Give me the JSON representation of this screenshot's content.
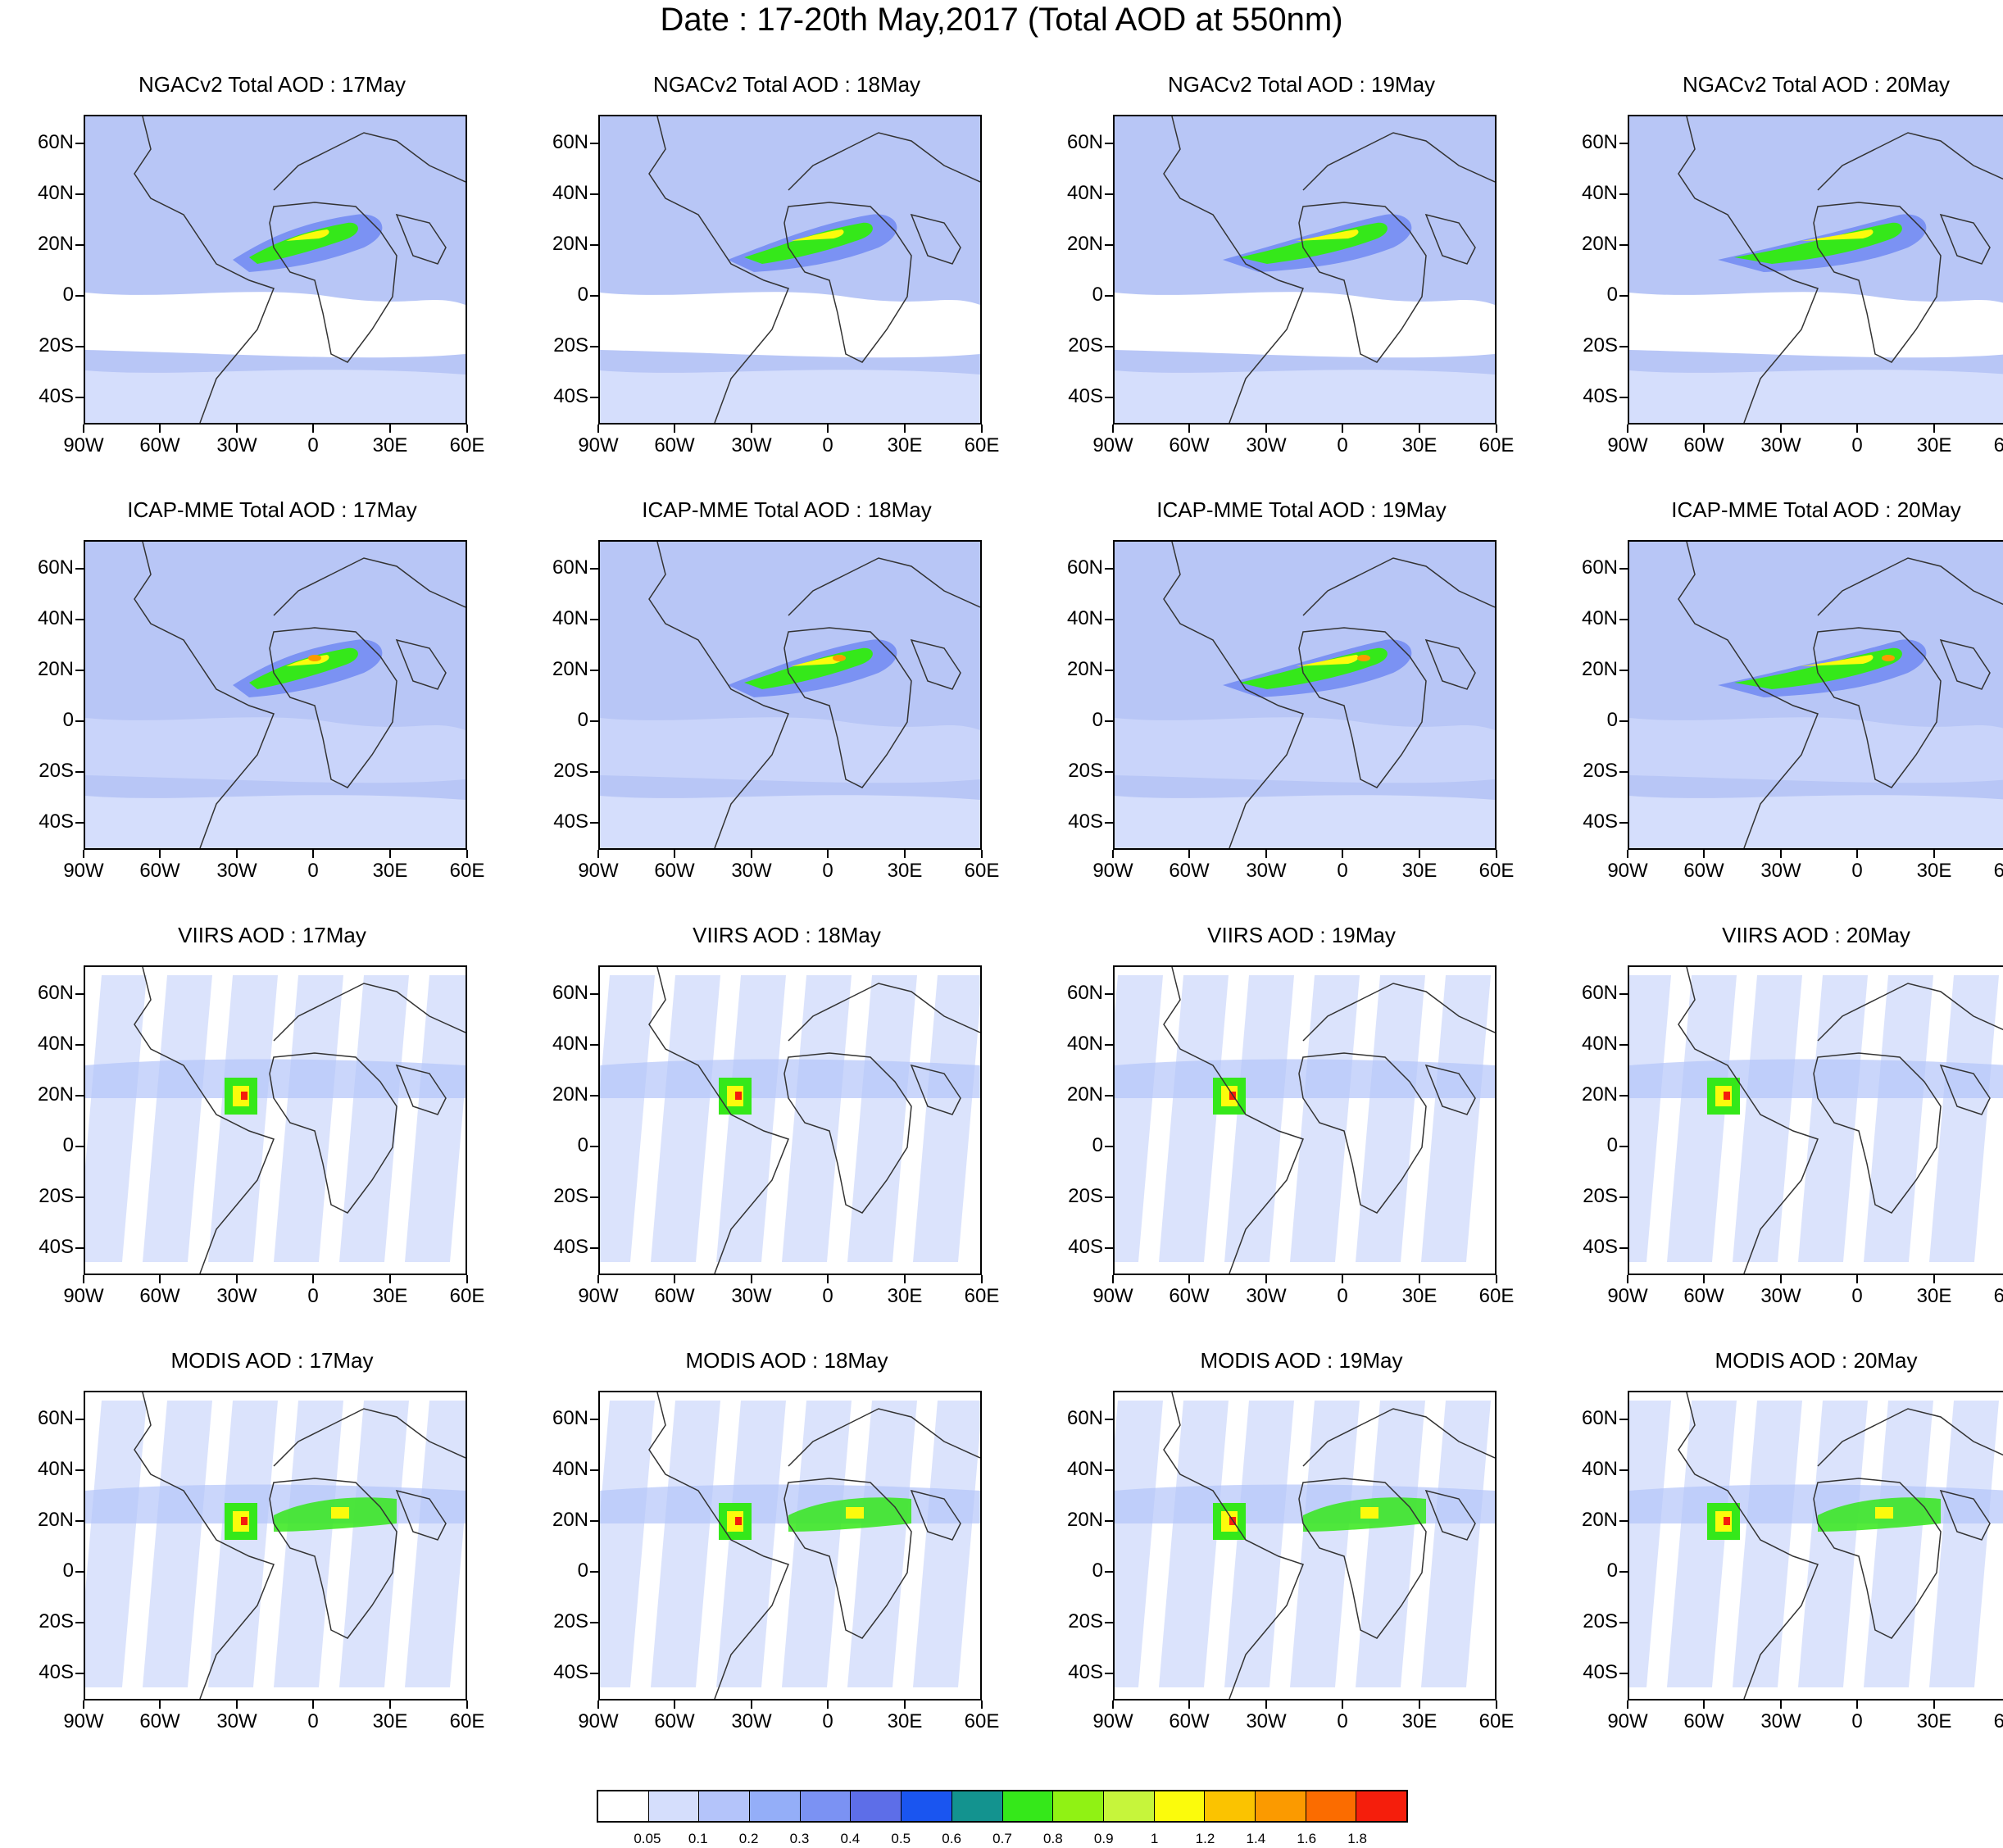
{
  "title": "Date : 17-20th May,2017 (Total AOD at 550nm)",
  "rows": [
    {
      "product": "NGACv2",
      "style": "model",
      "titles": [
        "NGACv2 Total AOD : 17May",
        "NGACv2 Total AOD : 18May",
        "NGACv2 Total AOD : 19May",
        "NGACv2 Total AOD : 20May"
      ]
    },
    {
      "product": "ICAP-MME",
      "style": "model",
      "titles": [
        "ICAP-MME Total AOD : 17May",
        "ICAP-MME Total AOD : 18May",
        "ICAP-MME Total AOD : 19May",
        "ICAP-MME Total AOD : 20May"
      ]
    },
    {
      "product": "VIIRS",
      "style": "satellite",
      "titles": [
        "VIIRS AOD : 17May",
        "VIIRS AOD : 18May",
        "VIIRS AOD : 19May",
        "VIIRS AOD : 20May"
      ]
    },
    {
      "product": "MODIS",
      "style": "satellite",
      "titles": [
        "MODIS AOD : 17May",
        "MODIS AOD : 18May",
        "MODIS AOD : 19May",
        "MODIS AOD : 20May"
      ]
    }
  ],
  "y_axis_labels": [
    "60N",
    "40N",
    "20N",
    "0",
    "20S",
    "40S"
  ],
  "x_axis_labels": [
    "90W",
    "60W",
    "30W",
    "0",
    "30E",
    "60E"
  ],
  "colorbar": {
    "labels": [
      "0.05",
      "0.1",
      "0.2",
      "0.3",
      "0.4",
      "0.5",
      "0.6",
      "0.7",
      "0.8",
      "0.9",
      "1",
      "1.2",
      "1.4",
      "1.6",
      "1.8"
    ],
    "colors": [
      "#ffffff",
      "#d5defc",
      "#b4c4fa",
      "#94aef8",
      "#7b92f3",
      "#5d6ee8",
      "#1a55f0",
      "#13938f",
      "#35e81a",
      "#90f214",
      "#c6f53b",
      "#fbfb0c",
      "#fbc300",
      "#fb9a00",
      "#fb6c00",
      "#f51e0c"
    ]
  },
  "map_colors": {
    "background": "#b8c6f6",
    "low": "#d5defc",
    "mid": "#7b92f3",
    "high": "#5d6ee8",
    "green": "#35e81a",
    "yellow": "#fbfb0c",
    "orange": "#fb9a00",
    "red": "#f51e0c",
    "coast": "#333333"
  }
}
